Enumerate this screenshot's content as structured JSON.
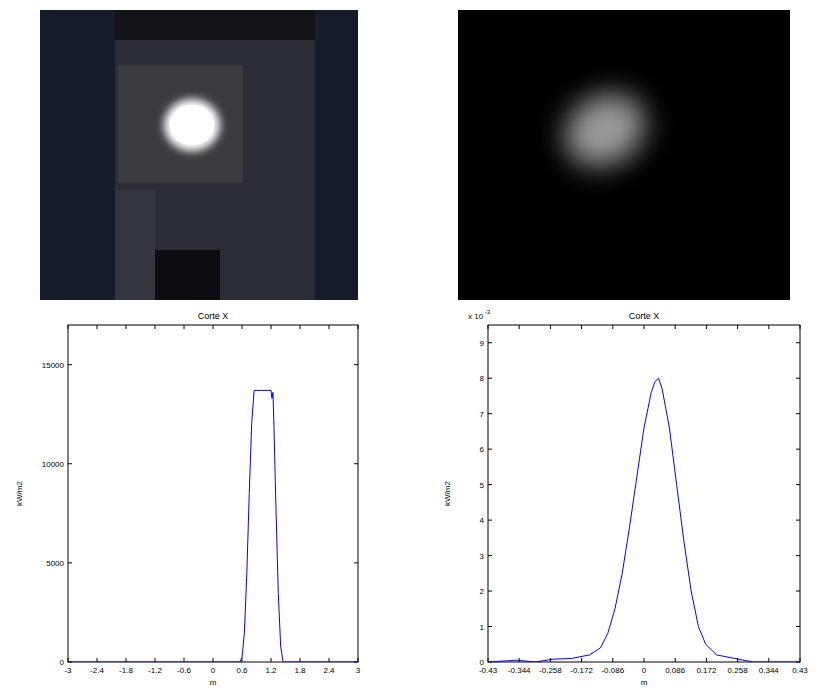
{
  "chart_data": [
    {
      "type": "line",
      "title": "Corte X",
      "x_label": "m",
      "y_label": "kW/m2",
      "color": "#0000ff",
      "grid": false,
      "xlim": [
        -3,
        3
      ],
      "xticks": [
        -3,
        -2.4,
        -1.8,
        -1.2,
        -0.6,
        0,
        0.6,
        1.2,
        1.8,
        2.4,
        3
      ],
      "ylim": [
        0,
        17000
      ],
      "yticks": [
        0,
        5000,
        10000,
        15000
      ],
      "x": [
        -3,
        0.55,
        0.6,
        0.65,
        0.7,
        0.75,
        0.8,
        0.85,
        0.9,
        1.0,
        1.1,
        1.2,
        1.22,
        1.24,
        1.26,
        1.3,
        1.35,
        1.4,
        1.45,
        3
      ],
      "values": [
        0,
        0,
        200,
        1500,
        4500,
        8500,
        12000,
        13700,
        13700,
        13700,
        13700,
        13700,
        13300,
        13600,
        12000,
        8000,
        3500,
        800,
        0,
        0
      ]
    },
    {
      "type": "line",
      "title": "Corte X",
      "x_label": "m",
      "y_label": "kW/m2",
      "color": "#0000ff",
      "grid": false,
      "annotation": "x 10",
      "annotation_sup": "-3",
      "xlim": [
        -0.43,
        0.43
      ],
      "xticks": [
        -0.43,
        -0.344,
        -0.258,
        -0.172,
        -0.086,
        0,
        0.086,
        0.172,
        0.258,
        0.344,
        0.43
      ],
      "ylim": [
        0,
        0.0095
      ],
      "yticks": [
        {
          "value": 0,
          "label": "0"
        },
        {
          "value": 0.001,
          "label": "1"
        },
        {
          "value": 0.002,
          "label": "2"
        },
        {
          "value": 0.003,
          "label": "3"
        },
        {
          "value": 0.004,
          "label": "4"
        },
        {
          "value": 0.005,
          "label": "5"
        },
        {
          "value": 0.006,
          "label": "6"
        },
        {
          "value": 0.007,
          "label": "7"
        },
        {
          "value": 0.008,
          "label": "8"
        },
        {
          "value": 0.009,
          "label": "9"
        }
      ],
      "x": [
        -0.43,
        -0.35,
        -0.3,
        -0.25,
        -0.2,
        -0.15,
        -0.12,
        -0.1,
        -0.08,
        -0.06,
        -0.04,
        -0.02,
        0,
        0.02,
        0.03,
        0.04,
        0.05,
        0.07,
        0.09,
        0.11,
        0.13,
        0.15,
        0.17,
        0.2,
        0.25,
        0.3,
        0.43
      ],
      "values": [
        0,
        5e-05,
        0,
        8e-05,
        0.0001,
        0.0002,
        0.0004,
        0.0008,
        0.0015,
        0.0025,
        0.0038,
        0.0052,
        0.0066,
        0.0076,
        0.0079,
        0.008,
        0.0077,
        0.0066,
        0.005,
        0.0034,
        0.002,
        0.001,
        0.0005,
        0.0002,
        0.0001,
        0,
        0
      ]
    }
  ]
}
